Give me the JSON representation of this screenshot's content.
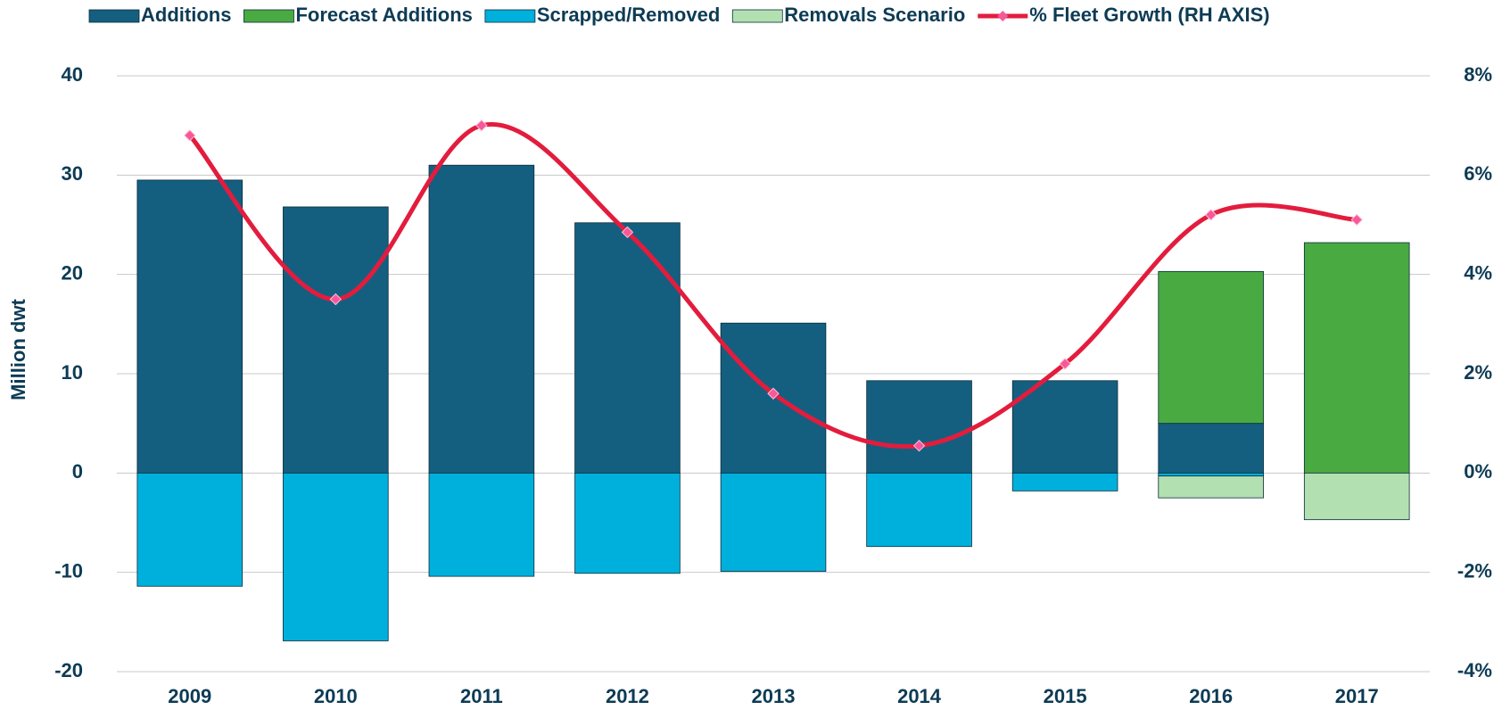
{
  "chart_data": {
    "type": "bar",
    "stacked": true,
    "categories": [
      "2009",
      "2010",
      "2011",
      "2012",
      "2013",
      "2014",
      "2015",
      "2016",
      "2017"
    ],
    "y_label": "Million dwt",
    "ylim": [
      -20,
      40
    ],
    "yticks": [
      -20,
      -10,
      0,
      10,
      20,
      30,
      40
    ],
    "y2lim": [
      -4,
      8
    ],
    "y2ticks": [
      {
        "value": -4,
        "label": "-4%"
      },
      {
        "value": -2,
        "label": "-2%"
      },
      {
        "value": 0,
        "label": "0%"
      },
      {
        "value": 2,
        "label": "2%"
      },
      {
        "value": 4,
        "label": "4%"
      },
      {
        "value": 6,
        "label": "6%"
      },
      {
        "value": 8,
        "label": "8%"
      }
    ],
    "grid": true,
    "legend": "top",
    "series": [
      {
        "name": "Additions",
        "type": "bar",
        "color": "#145f80",
        "values": [
          29.5,
          26.8,
          31,
          25.2,
          15.1,
          9.3,
          9.3,
          5,
          null
        ]
      },
      {
        "name": "Forecast Additions",
        "type": "bar",
        "color": "#4aaa42",
        "values": [
          null,
          null,
          null,
          null,
          null,
          null,
          null,
          15.3,
          23.2
        ]
      },
      {
        "name": "Scrapped/Removed",
        "type": "bar",
        "color": "#00b0dc",
        "values": [
          -11.4,
          -16.9,
          -10.4,
          -10.1,
          -9.9,
          -7.4,
          -1.8,
          -0.3,
          null
        ]
      },
      {
        "name": "Removals Scenario",
        "type": "bar",
        "color": "#b3e0b0",
        "values": [
          null,
          null,
          null,
          null,
          null,
          null,
          null,
          -2.2,
          -4.7
        ]
      },
      {
        "name": "% Fleet Growth (RH AXIS)",
        "type": "line",
        "axis": "y2",
        "color": "#e31c3d",
        "marker_color": "#f7589a",
        "values": [
          6.8,
          3.5,
          7.0,
          4.85,
          1.6,
          0.55,
          2.2,
          5.2,
          5.1
        ]
      }
    ]
  }
}
